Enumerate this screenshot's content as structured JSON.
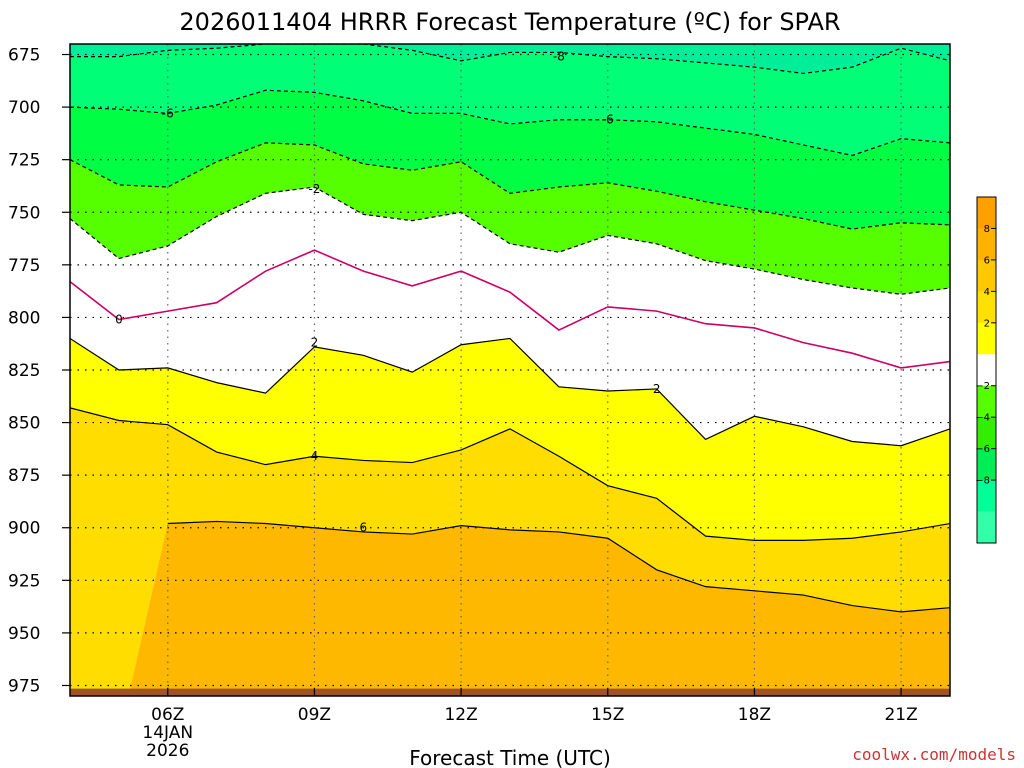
{
  "chart_data": {
    "type": "area",
    "title": "2026011404 HRRR Forecast Temperature (ºC) for SPAR",
    "xlabel": "Forecast Time (UTC)",
    "credit": "coolwx.com/models",
    "x_ticks": [
      {
        "hour": 6,
        "label": "06Z",
        "date_line1": "14JAN",
        "date_line2": "2026"
      },
      {
        "hour": 9,
        "label": "09Z"
      },
      {
        "hour": 12,
        "label": "12Z"
      },
      {
        "hour": 15,
        "label": "15Z"
      },
      {
        "hour": 18,
        "label": "18Z"
      },
      {
        "hour": 21,
        "label": "21Z"
      }
    ],
    "xlim": [
      4,
      22
    ],
    "y_ticks": [
      675,
      700,
      725,
      750,
      775,
      800,
      825,
      850,
      875,
      900,
      925,
      950,
      975
    ],
    "ylim": [
      670,
      980
    ],
    "grid": true,
    "colorbar_ticks": [
      "8",
      "6",
      "4",
      "2",
      "−2",
      "−4",
      "−6",
      "−8"
    ],
    "colorbar_colors": [
      "#ff9f00",
      "#ffb300",
      "#ffc800",
      "#ffe000",
      "#ffff00",
      "#ffffff",
      "#55ff00",
      "#33ee00",
      "#00ee55",
      "#00ff99",
      "#33ffaa"
    ],
    "fill_colors": {
      "t_below_-8": "#00ee99",
      "t_-8_-6": "#00ff77",
      "t_-6_-4": "#00ff44",
      "t_-4_-2": "#55ff00",
      "t_-2_2": "#ffffff",
      "t_2_4": "#ffff00",
      "t_4_6": "#ffdd00",
      "t_6_8": "#ffb800",
      "terrain": "#a0522d"
    },
    "x": [
      4,
      5,
      6,
      7,
      8,
      9,
      10,
      11,
      12,
      13,
      14,
      15,
      16,
      17,
      18,
      19,
      20,
      21,
      22
    ],
    "series": [
      {
        "name": "-8",
        "style": "dashed",
        "color": "#000000",
        "values": [
          676,
          676,
          673,
          672,
          670,
          670,
          670,
          673,
          678,
          674,
          674,
          676,
          677,
          679,
          681,
          684,
          681,
          672,
          678
        ]
      },
      {
        "name": "-6",
        "style": "dashed",
        "color": "#000000",
        "values": [
          700,
          701,
          703,
          699,
          692,
          693,
          697,
          703,
          703,
          708,
          706,
          706,
          707,
          710,
          713,
          718,
          723,
          715,
          717
        ]
      },
      {
        "name": "-4",
        "style": "dashed",
        "color": "#000000",
        "values": [
          725,
          737,
          738,
          726,
          717,
          718,
          727,
          730,
          726,
          741,
          738,
          736,
          740,
          745,
          749,
          753,
          758,
          755,
          756
        ]
      },
      {
        "name": "-2",
        "style": "dashed",
        "color": "#000000",
        "values": [
          753,
          772,
          766,
          752,
          741,
          738,
          751,
          754,
          750,
          765,
          769,
          761,
          765,
          773,
          777,
          782,
          786,
          789,
          786
        ]
      },
      {
        "name": "0",
        "style": "solid",
        "color": "#cc0066",
        "values": [
          783,
          801,
          797,
          793,
          778,
          768,
          778,
          785,
          778,
          788,
          806,
          795,
          797,
          803,
          805,
          812,
          817,
          824,
          821
        ]
      },
      {
        "name": "2",
        "style": "solid",
        "color": "#000000",
        "values": [
          810,
          825,
          824,
          831,
          836,
          814,
          818,
          826,
          813,
          810,
          833,
          835,
          834,
          858,
          847,
          852,
          859,
          861,
          853
        ]
      },
      {
        "name": "4",
        "style": "solid",
        "color": "#000000",
        "values": [
          843,
          849,
          851,
          864,
          870,
          866,
          868,
          869,
          863,
          853,
          866,
          880,
          886,
          904,
          906,
          906,
          905,
          902,
          898
        ]
      },
      {
        "name": "6",
        "style": "solid",
        "color": "#000000",
        "values": [
          null,
          null,
          898,
          897,
          898,
          900,
          902,
          903,
          899,
          901,
          902,
          905,
          920,
          928,
          930,
          932,
          937,
          940,
          938
        ]
      }
    ],
    "contour_labels": [
      {
        "text": "-8",
        "x": 14.0,
        "y": 676
      },
      {
        "text": "-6",
        "x": 6.0,
        "y": 703
      },
      {
        "text": "-6",
        "x": 15.0,
        "y": 706
      },
      {
        "text": "-2",
        "x": 9.0,
        "y": 739
      },
      {
        "text": "0",
        "x": 5.0,
        "y": 801
      },
      {
        "text": "2",
        "x": 9.0,
        "y": 812
      },
      {
        "text": "2",
        "x": 16.0,
        "y": 834
      },
      {
        "text": "4",
        "x": 9.0,
        "y": 866
      },
      {
        "text": "6",
        "x": 10.0,
        "y": 900
      }
    ]
  }
}
